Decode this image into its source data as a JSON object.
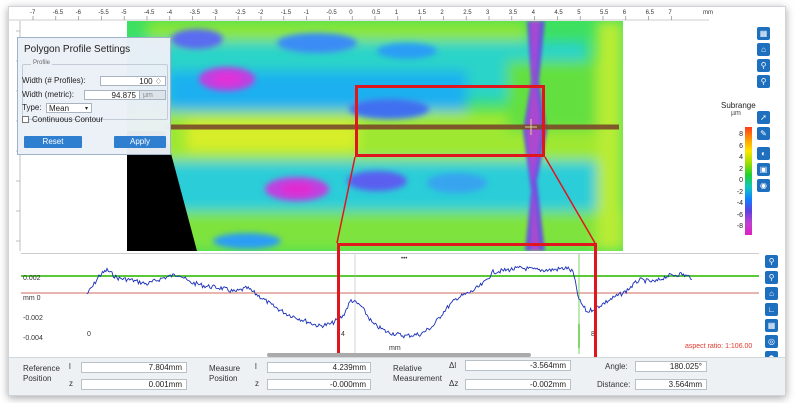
{
  "ruler": {
    "unit": "mm",
    "ticks": [
      "-7",
      "-6.5",
      "-6",
      "-5.5",
      "-5",
      "-4.5",
      "-4",
      "-3.5",
      "-3",
      "-2.5",
      "-2",
      "-1.5",
      "-1",
      "-0.5",
      "0",
      "0.5",
      "1",
      "1.5",
      "2",
      "2.5",
      "3",
      "3.5",
      "4",
      "4.5",
      "5",
      "5.5",
      "6",
      "6.5",
      "7"
    ]
  },
  "settings": {
    "title": "Polygon Profile Settings",
    "group_label": "Profile",
    "width_profiles_label": "Width (# Profiles):",
    "width_profiles_value": "100 ♢",
    "width_metric_label": "Width (metric):",
    "width_metric_value": "94.875",
    "width_metric_unit": "µm",
    "type_label": "Type:",
    "type_value": "Mean",
    "continuous_label": "Continuous Contour",
    "reset_label": "Reset",
    "apply_label": "Apply"
  },
  "colorbar": {
    "title": "Subrange",
    "unit": "µm",
    "labels": [
      "8",
      "6",
      "4",
      "2",
      "0",
      "-2",
      "-4",
      "-6",
      "-8"
    ]
  },
  "profile": {
    "unit": "mm",
    "x_unit": "mm",
    "y_ticks": [
      "0.002",
      "mm 0",
      "-0.002",
      "-0.004"
    ],
    "x_ticks": [
      "0",
      "4",
      "8"
    ],
    "aspect_ratio": "aspect ratio: 1:106.00",
    "dots": "•••"
  },
  "measurement": {
    "reference_label": "Reference",
    "reference_label2": "Position",
    "ref_l_label": "l",
    "ref_l_value": "7.804mm",
    "ref_z_label": "z",
    "ref_z_value": "0.001mm",
    "measure_label": "Measure",
    "measure_label2": "Position",
    "meas_l_label": "l",
    "meas_l_value": "4.239mm",
    "meas_z_label": "z",
    "meas_z_value": "-0.000mm",
    "relative_label": "Relative",
    "relative_label2": "Measurement",
    "dl_label": "Δl",
    "dl_value": "-3.564mm",
    "dz_label": "Δz",
    "dz_value": "-0.002mm",
    "angle_label": "Angle:",
    "angle_value": "180.025°",
    "distance_label": "Distance:",
    "distance_value": "3.564mm"
  },
  "colors": {
    "accent": "#1f6fbf",
    "highlight": "#e0161e",
    "profile_line": "#1a2fb8",
    "reference_line": "#59c93a",
    "zero_line": "#c0392b"
  }
}
